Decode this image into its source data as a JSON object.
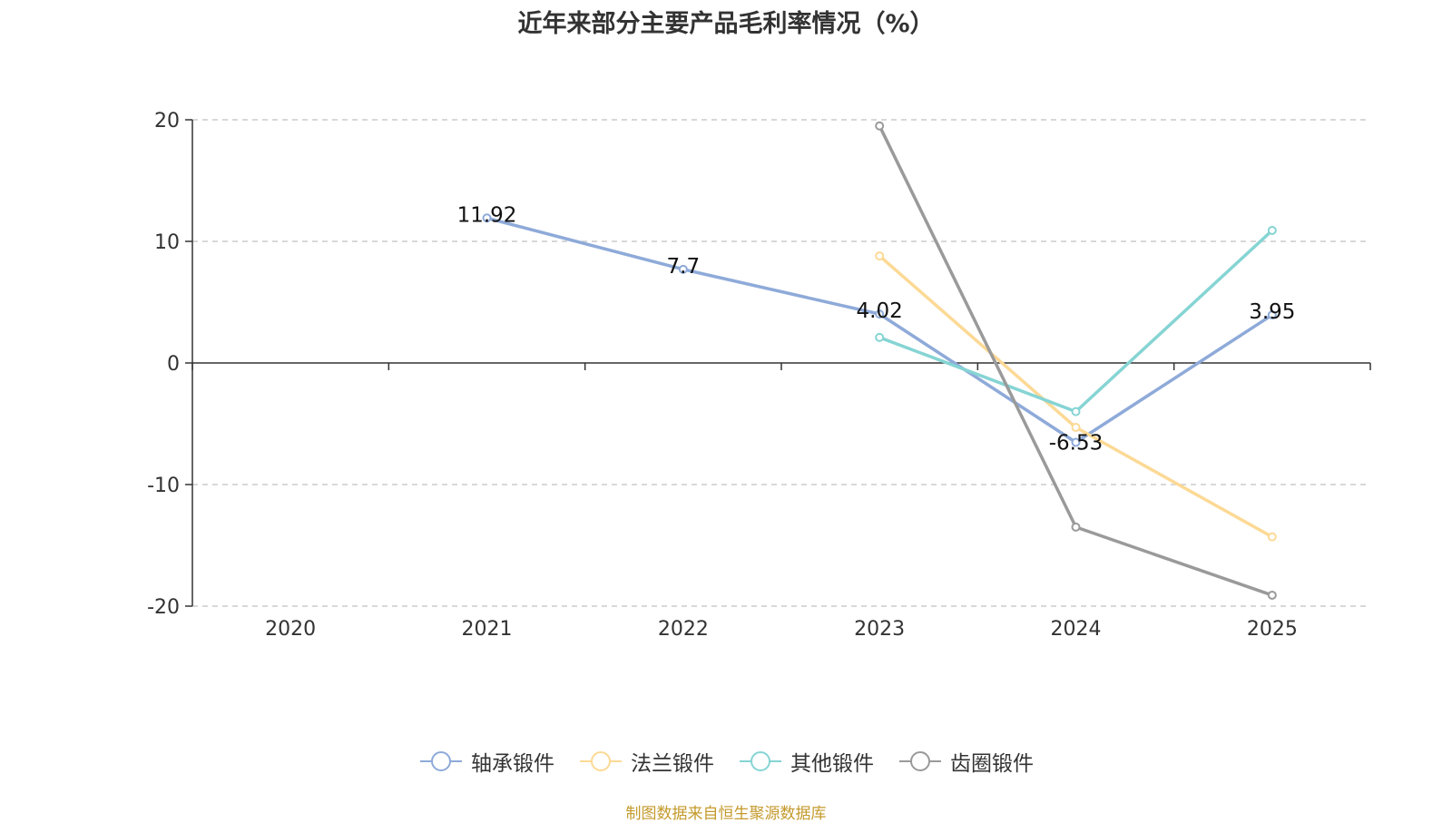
{
  "chart_data": {
    "type": "line",
    "title": "近年来部分主要产品毛利率情况（%）",
    "categories": [
      "2020",
      "2021",
      "2022",
      "2023",
      "2024",
      "2025"
    ],
    "ylim": [
      -20,
      20
    ],
    "yticks": [
      -20,
      -10,
      0,
      10,
      20
    ],
    "grid": true,
    "legend_position": "bottom",
    "series": [
      {
        "name": "轴承锻件",
        "color": "#8eaad9",
        "values": [
          null,
          11.92,
          7.7,
          4.02,
          -6.53,
          3.95
        ],
        "labels": [
          null,
          "11.92",
          "7.7",
          "4.02",
          "-6.53",
          "3.95"
        ]
      },
      {
        "name": "法兰锻件",
        "color": "#fcd995",
        "values": [
          null,
          null,
          null,
          8.8,
          -5.3,
          -14.3
        ],
        "labels": [
          null,
          null,
          null,
          null,
          null,
          null
        ]
      },
      {
        "name": "其他锻件",
        "color": "#86d4d4",
        "values": [
          null,
          null,
          null,
          2.1,
          -4.0,
          10.9
        ],
        "labels": [
          null,
          null,
          null,
          null,
          null,
          null
        ]
      },
      {
        "name": "齿圈锻件",
        "color": "#9a9a9a",
        "values": [
          null,
          null,
          null,
          19.5,
          -13.5,
          -19.1
        ],
        "labels": [
          null,
          null,
          null,
          null,
          null,
          null
        ]
      }
    ]
  },
  "source": "制图数据来自恒生聚源数据库"
}
